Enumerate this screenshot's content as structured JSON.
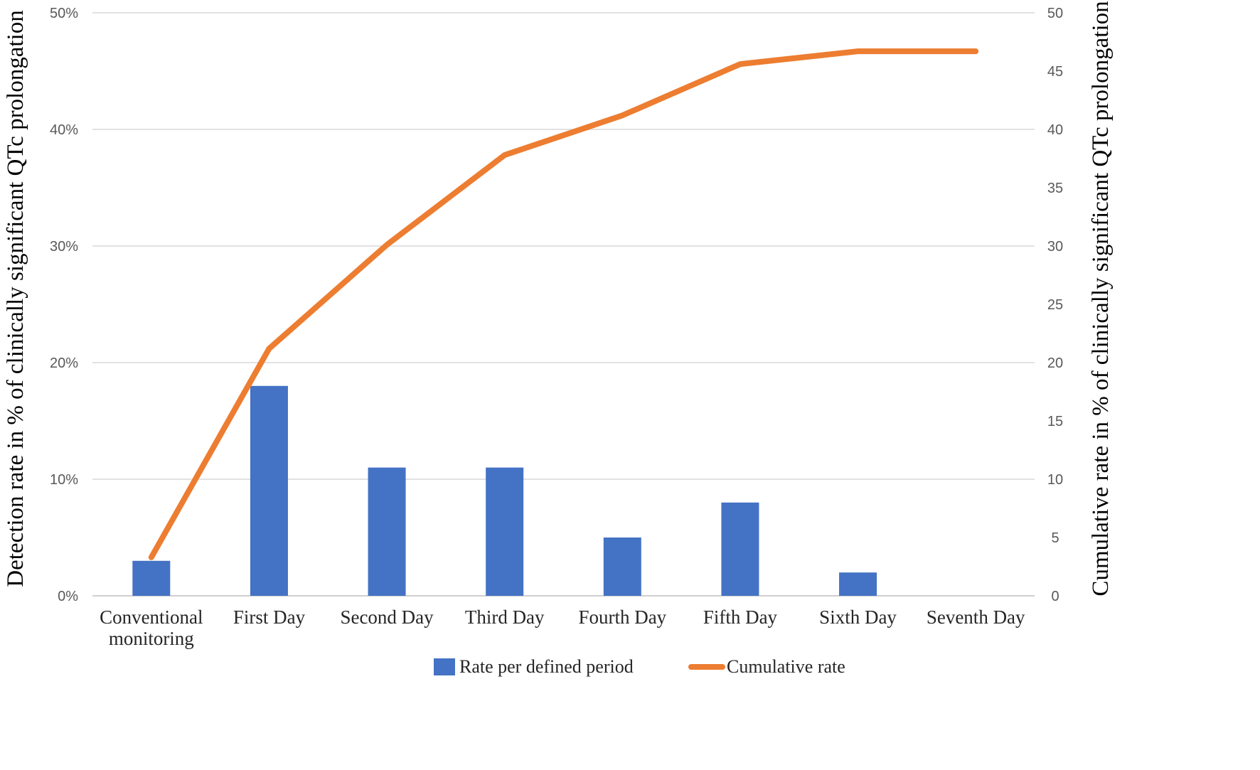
{
  "chart_data": {
    "type": "bar",
    "title": "",
    "categories": [
      [
        "Conventional",
        "monitoring"
      ],
      [
        "First Day"
      ],
      [
        "Second Day"
      ],
      [
        "Third Day"
      ],
      [
        "Fourth Day"
      ],
      [
        "Fifth Day"
      ],
      [
        "Sixth Day"
      ],
      [
        "Seventh Day"
      ]
    ],
    "series": [
      {
        "name": "Rate per defined period",
        "type": "bar",
        "axis": "left",
        "color": "#4472c4",
        "values": [
          3,
          18,
          11,
          11,
          5,
          8,
          2,
          0
        ]
      },
      {
        "name": "Cumulative rate",
        "type": "line",
        "axis": "right",
        "color": "#ed7d31",
        "values": [
          3.3,
          21.2,
          30.1,
          37.8,
          41.2,
          45.6,
          46.7,
          46.7
        ]
      }
    ],
    "y_left": {
      "label": "Detection rate in % of clinically significant QTc prolongation",
      "ylim": [
        0,
        50
      ],
      "ticks": [
        "0%",
        "10%",
        "20%",
        "30%",
        "40%",
        "50%"
      ],
      "tick_values": [
        0,
        10,
        20,
        30,
        40,
        50
      ]
    },
    "y_right": {
      "label": "Cumulative rate in % of clinically significant QTc prolongation",
      "ylim": [
        0,
        50
      ],
      "ticks": [
        "0",
        "5",
        "10",
        "15",
        "20",
        "25",
        "30",
        "35",
        "40",
        "45",
        "50"
      ],
      "tick_values": [
        0,
        5,
        10,
        15,
        20,
        25,
        30,
        35,
        40,
        45,
        50
      ]
    },
    "xlabel": "",
    "grid": true,
    "legend": {
      "placement": "bottom-center",
      "entries": [
        "Rate per defined period",
        "Cumulative rate"
      ]
    }
  }
}
